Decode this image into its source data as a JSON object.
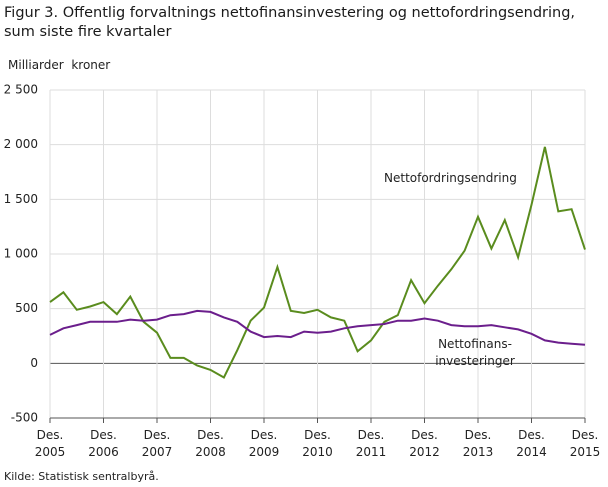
{
  "chart_data": {
    "type": "line",
    "title": "Figur 3. Offentlig forvaltnings nettofinansinvestering og nettofordringsendring, sum siste fire kvartaler",
    "y_label": "Milliarder  kroner",
    "source": "Kilde: Statistisk sentralbyrå.",
    "categories": [
      "Des. 2005",
      null,
      null,
      null,
      "Des. 2006",
      null,
      null,
      null,
      "Des. 2007",
      null,
      null,
      null,
      "Des. 2008",
      null,
      null,
      null,
      "Des. 2009",
      null,
      null,
      null,
      "Des. 2010",
      null,
      null,
      null,
      "Des. 2011",
      null,
      null,
      null,
      "Des. 2012",
      null,
      null,
      null,
      "Des. 2013",
      null,
      null,
      null,
      "Des. 2014",
      null,
      null,
      null,
      "Des. 2015"
    ],
    "series": [
      {
        "name": "Nettofordringsendring",
        "color": "#5a8c1e",
        "values": [
          560,
          650,
          490,
          520,
          560,
          450,
          610,
          380,
          280,
          50,
          50,
          -20,
          -60,
          -130,
          120,
          390,
          510,
          880,
          480,
          460,
          490,
          420,
          390,
          110,
          210,
          380,
          440,
          760,
          550,
          710,
          860,
          1030,
          1340,
          1050,
          1310,
          970,
          1450,
          1980,
          1390,
          1410,
          1040
        ]
      },
      {
        "name": "Nettofinans- investeringer",
        "color": "#6b1e8c",
        "values": [
          260,
          320,
          350,
          380,
          380,
          380,
          400,
          390,
          400,
          440,
          450,
          480,
          470,
          420,
          380,
          290,
          240,
          250,
          240,
          290,
          280,
          290,
          320,
          340,
          350,
          360,
          390,
          390,
          410,
          390,
          350,
          340,
          340,
          350,
          330,
          310,
          270,
          210,
          190,
          180,
          170
        ]
      }
    ],
    "ylim": [
      -500,
      2500
    ],
    "yticks": [
      -500,
      0,
      500,
      {
        "value": 1000,
        "label": "1 000"
      },
      {
        "value": 1500,
        "label": "1 500"
      },
      {
        "value": 2000,
        "label": "2 000"
      },
      {
        "value": 2500,
        "label": "2 500"
      }
    ],
    "grid": true
  }
}
